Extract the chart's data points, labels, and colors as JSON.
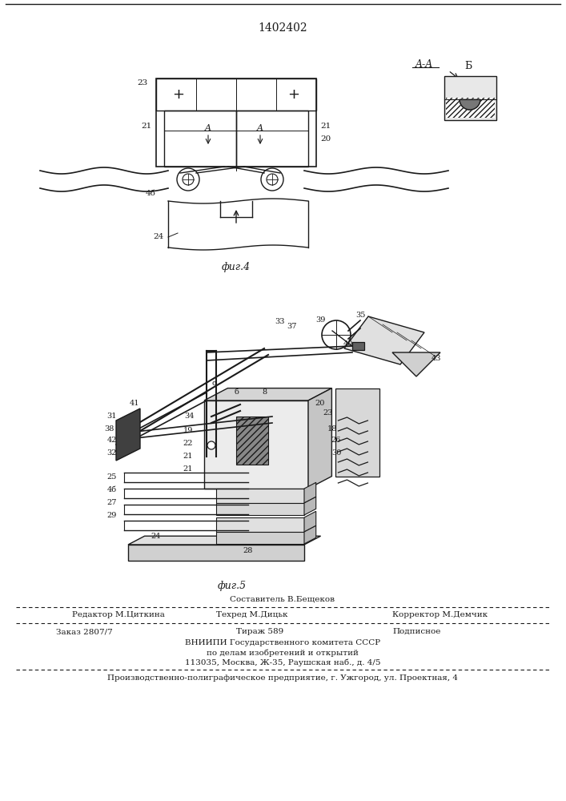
{
  "patent_number": "1402402",
  "bg_color": "#ffffff",
  "line_color": "#1a1a1a",
  "fig4_label": "фиг.4",
  "fig5_label": "фиг.5",
  "footer": {
    "col1_line1": "Редактор М.Циткина",
    "col2_line1": "Составитель В.Бещеков",
    "col2_line2": "Техред М.Дицьк",
    "col3_line1": "Корректор М.Демчик",
    "order_line": "Заказ 2807/7",
    "tirazh_line": "Тираж 589",
    "podpisnoe_line": "Подписное",
    "vniiipi_line": "ВНИИПИ Государственного комитета СССР",
    "po_delam_line": "по делам изобретений и открытий",
    "address_line": "113035, Москва, Ж-35, Раушская наб., д. 4/5",
    "proizv_line": "Производственно-полиграфическое предприятие, г. Ужгород, ул. Проектная, 4"
  }
}
